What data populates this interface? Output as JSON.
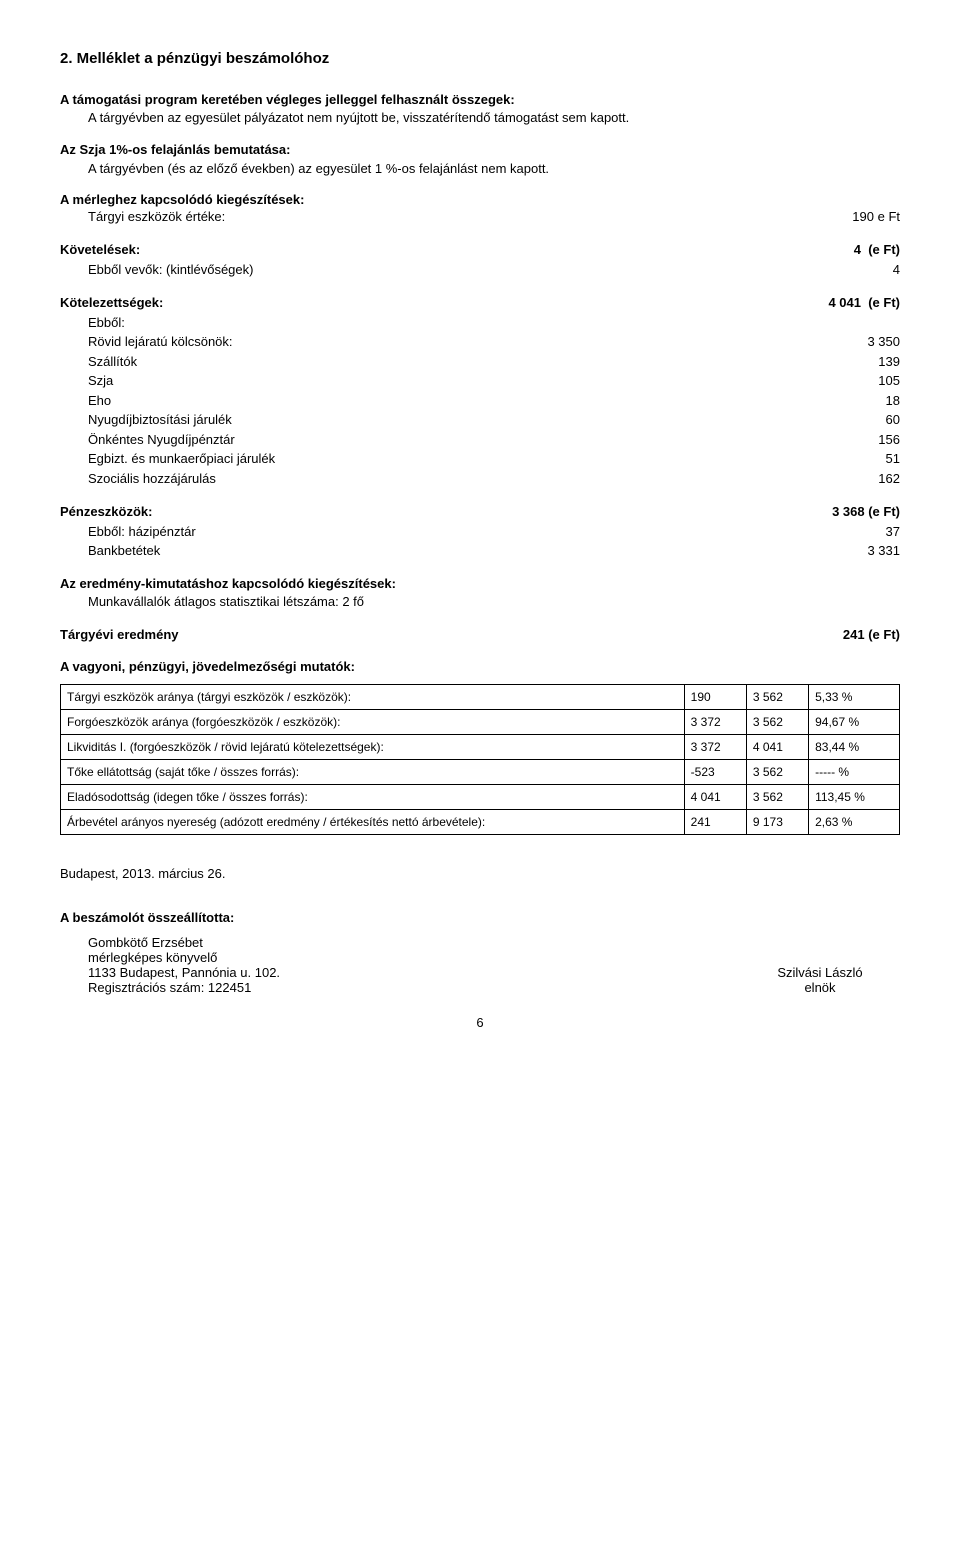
{
  "title": "2. Melléklet a pénzügyi beszámolóhoz",
  "para1_head": "A támogatási program keretében végleges jelleggel felhasznált összegek:",
  "para1_body": "A tárgyévben az egyesület pályázatot nem nyújtott be, visszatérítendő támogatást sem kapott.",
  "para2_head": "Az Szja 1%-os felajánlás bemutatása:",
  "para2_body": "A  tárgyévben (és az előző években) az egyesület 1 %-os felajánlást nem kapott.",
  "merleg_head": "A mérleghez kapcsolódó kiegészítések:",
  "targyi": {
    "label": "Tárgyi eszközök értéke:",
    "val": "190 e Ft"
  },
  "kovetelesek": {
    "label": "Követelések:",
    "val": "4  (e Ft)"
  },
  "kov_sub": {
    "label": "Ebből vevők: (kintlévőségek)",
    "val": "4"
  },
  "kotelezettsegek": {
    "label": "Kötelezettségek:",
    "val": "4 041  (e Ft)"
  },
  "kot_items": [
    {
      "label": "Ebből:",
      "val": ""
    },
    {
      "label": "Rövid lejáratú kölcsönök:",
      "val": "3 350"
    },
    {
      "label": "Szállítók",
      "val": "139"
    },
    {
      "label": "Szja",
      "val": "105"
    },
    {
      "label": "Eho",
      "val": "18"
    },
    {
      "label": "Nyugdíjbiztosítási járulék",
      "val": "60"
    },
    {
      "label": "Önkéntes Nyugdíjpénztár",
      "val": "156"
    },
    {
      "label": "Egbizt. és munkaerőpiaci járulék",
      "val": "51"
    },
    {
      "label": "Szociális hozzájárulás",
      "val": "162"
    }
  ],
  "penzeszkozok": {
    "label": "Pénzeszközök:",
    "val": "3 368 (e Ft)"
  },
  "penz_items": [
    {
      "label": "Ebből: házipénztár",
      "val": "37"
    },
    {
      "label": "Bankbetétek",
      "val": "3 331"
    }
  ],
  "eredm_head": "Az eredmény-kimutatáshoz kapcsolódó kiegészítések:",
  "eredm_body": "Munkavállalók átlagos statisztikai létszáma:    2 fő",
  "targyevi": {
    "label": "Tárgyévi eredmény",
    "val": "241 (e Ft)"
  },
  "vagyoni_head": "A vagyoni, pénzügyi, jövedelmezőségi mutatók:",
  "ratios": [
    {
      "name": "Tárgyi eszközök aránya (tárgyi eszközök / eszközök):",
      "a": "190",
      "b": "3 562",
      "c": "5,33 %"
    },
    {
      "name": "Forgóeszközök aránya (forgóeszközök / eszközök):",
      "a": "3 372",
      "b": "3 562",
      "c": "94,67 %"
    },
    {
      "name": "Likviditás I. (forgóeszközök / rövid lejáratú kötelezettségek):",
      "a": "3 372",
      "b": "4 041",
      "c": "83,44 %"
    },
    {
      "name": "Tőke ellátottság (saját tőke / összes forrás):",
      "a": "-523",
      "b": "3 562",
      "c": "----- %"
    },
    {
      "name": "Eladósodottság (idegen tőke / összes forrás):",
      "a": "4 041",
      "b": "3 562",
      "c": "113,45 %"
    },
    {
      "name": "Árbevétel arányos nyereség (adózott eredmény / értékesítés nettó árbevétele):",
      "a": "241",
      "b": "9 173",
      "c": "2,63 %"
    }
  ],
  "date": "Budapest, 2013. március 26.",
  "compiler_head": "A beszámolót összeállította:",
  "compiler": {
    "name": "Gombkötő Erzsébet",
    "title": "mérlegképes könyvelő",
    "addr": "1133 Budapest, Pannónia u. 102.",
    "reg": "Regisztrációs szám: 122451"
  },
  "signer": {
    "name": "Szilvási László",
    "title": "elnök"
  },
  "page": "6"
}
